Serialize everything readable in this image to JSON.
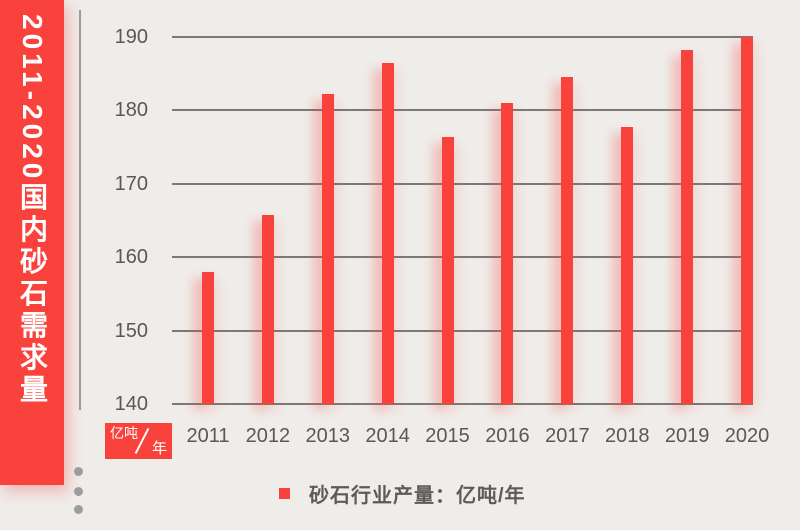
{
  "banner": {
    "title": "2011-2020国内砂石需求量"
  },
  "unit_badge": {
    "numerator": "亿吨",
    "denominator": "年"
  },
  "legend": {
    "label": "砂石行业产量：亿吨/年"
  },
  "colors": {
    "accent_red": "#fa423c",
    "background": "#efedea",
    "gridline": "#7b7977",
    "axis_text": "#5a5857",
    "legend_text": "#5d5a5a"
  },
  "chart_data": {
    "type": "bar",
    "title": "2011-2020国内砂石需求量",
    "categories": [
      "2011",
      "2012",
      "2013",
      "2014",
      "2015",
      "2016",
      "2017",
      "2018",
      "2019",
      "2020"
    ],
    "values": [
      158,
      165.8,
      182.2,
      186.5,
      176.4,
      181,
      184.5,
      177.8,
      188.2,
      190
    ],
    "series_name": "砂石行业产量：亿吨/年",
    "xlabel": "",
    "ylabel": "亿吨/年",
    "ylim": [
      140,
      190
    ],
    "yticks": [
      190,
      180,
      170,
      160,
      150,
      140
    ],
    "grid": true,
    "legend_position": "bottom",
    "bar_color": "#fa423c"
  }
}
